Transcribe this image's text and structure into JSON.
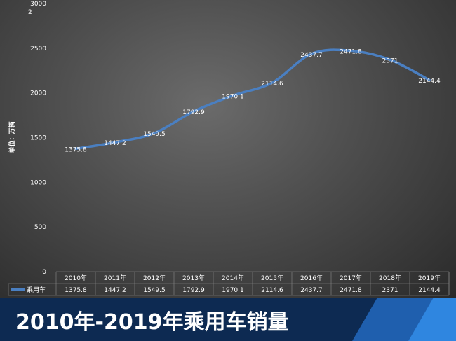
{
  "chart_data": {
    "type": "line",
    "title": "",
    "ylabel": "单位：万辆",
    "ylim": [
      0,
      3000
    ],
    "yticks": [
      0,
      500,
      1000,
      1500,
      2000,
      2500,
      3000
    ],
    "ytick_labels": [
      "0",
      "500",
      "1000",
      "1500",
      "2000",
      "2500",
      "3000"
    ],
    "stray_label": "2",
    "categories": [
      "2010年",
      "2011年",
      "2012年",
      "2013年",
      "2014年",
      "2015年",
      "2016年",
      "2017年",
      "2018年",
      "2019年"
    ],
    "series": [
      {
        "name": "乘用车",
        "values": [
          1375.8,
          1447.2,
          1549.5,
          1792.9,
          1970.1,
          2114.6,
          2437.7,
          2471.8,
          2371,
          2144.4
        ],
        "labels": [
          "1375.8",
          "1447.2",
          "1549.5",
          "1792.9",
          "1970.1",
          "2114.6",
          "2437.7",
          "2471.8",
          "2371",
          "2144.4"
        ],
        "color": "#4a7fc1"
      }
    ],
    "grid": true,
    "legend": "data-table"
  },
  "footer": {
    "title": "2010年-2019年乘用车销量"
  },
  "colors": {
    "line": "#4a7fc1",
    "footer_bg": "#0d2a52",
    "accent": "#2f86e0"
  }
}
